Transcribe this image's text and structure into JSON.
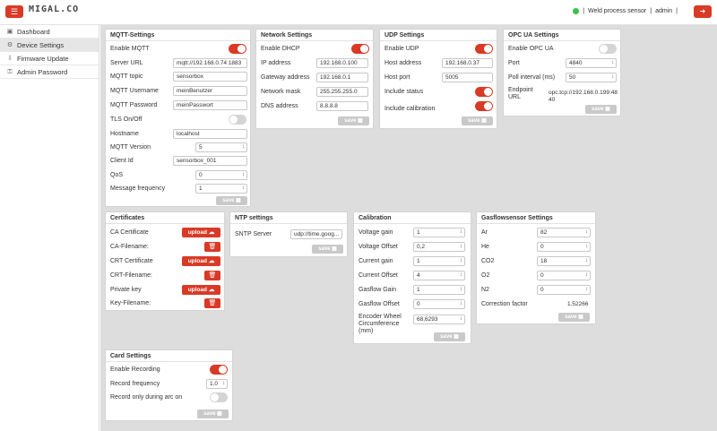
{
  "header": {
    "menu_icon": "hamburger-icon",
    "logo_text": "MIGAL.CO",
    "device_name": "Weld process sensor",
    "separator": "|",
    "user": "admin",
    "status_color": "#3cbf4a",
    "accent": "#d93a26"
  },
  "sidebar": {
    "items": [
      {
        "label": "Dashboard",
        "icon": "monitor-icon"
      },
      {
        "label": "Device Settings",
        "icon": "gear-icon"
      },
      {
        "label": "Firmware Update",
        "icon": "download-icon"
      },
      {
        "label": "Admin Password",
        "icon": "key-icon"
      }
    ]
  },
  "common": {
    "save": "save",
    "upload": "upload"
  },
  "mqtt": {
    "title": "MQTT-Settings",
    "enable_label": "Enable MQTT",
    "server_url_label": "Server URL",
    "server_url": "mqtt://192.168.0.74:1883",
    "topic_label": "MQTT topic",
    "topic": "sensorbox",
    "username_label": "MQTT Username",
    "username": "meinBenutzer",
    "password_label": "MQTT Password",
    "password": "meinPasswort",
    "tls_label": "TLS On/Off",
    "hostname_label": "Hostname",
    "hostname": "localhost",
    "version_label": "MQTT Version",
    "version": "5",
    "client_label": "Client Id",
    "client": "sensorbox_001",
    "qos_label": "QoS",
    "qos": "0",
    "freq_label": "Message frequency",
    "freq": "1"
  },
  "network": {
    "title": "Network Settings",
    "dhcp_label": "Enable DHCP",
    "ip_label": "IP address",
    "ip": "192.168.0.100",
    "gw_label": "Gateway address",
    "gw": "192.168.0.1",
    "mask_label": "Network mask",
    "mask": "255.255.255.0",
    "dns_label": "DNS address",
    "dns": "8.8.8.8"
  },
  "udp": {
    "title": "UDP Settings",
    "enable_label": "Enable UDP",
    "host_label": "Host address",
    "host": "192.168.0.37",
    "port_label": "Host port",
    "port": "5005",
    "status_label": "Include status",
    "calib_label": "Include calibration"
  },
  "opcua": {
    "title": "OPC UA Settings",
    "enable_label": "Enable OPC UA",
    "port_label": "Port",
    "port": "4840",
    "poll_label": "Poll interval (ms)",
    "poll": "50",
    "endpoint_label": "Endpoint URL",
    "endpoint": "opc.tcp://192.168.0.199:4840"
  },
  "certs": {
    "title": "Certificates",
    "ca_label": "CA Certificate",
    "ca_file_label": "CA-Filename:",
    "crt_label": "CRT Certificate",
    "crt_file_label": "CRT-Filename:",
    "key_label": "Private key",
    "key_file_label": "Key-Filename:"
  },
  "ntp": {
    "title": "NTP settings",
    "server_label": "SNTP Server",
    "server": "udp://time.goog..."
  },
  "calibration": {
    "title": "Calibration",
    "voltage_gain_label": "Voltage gain",
    "voltage_gain": "1",
    "voltage_offset_label": "Voltage Offset",
    "voltage_offset": "0,2",
    "current_gain_label": "Current gain",
    "current_gain": "1",
    "current_offset_label": "Current Offset",
    "current_offset": "4",
    "gasflow_gain_label": "Gasflow Gain",
    "gasflow_gain": "1",
    "gasflow_offset_label": "Gasflow Offset",
    "gasflow_offset": "0",
    "encoder_label": "Encoder Wheel Circumference (mm)",
    "encoder": "68,6293"
  },
  "gas": {
    "title": "Gasflowsensor Settings",
    "ar_label": "Ar",
    "ar": "82",
    "he_label": "He",
    "he": "0",
    "co2_label": "CO2",
    "co2": "18",
    "o2_label": "O2",
    "o2": "0",
    "n2_label": "N2",
    "n2": "0",
    "corr_label": "Correction factor",
    "corr": "1.52266"
  },
  "card": {
    "title": "Card Settings",
    "rec_label": "Enable Recording",
    "freq_label": "Record frequency",
    "freq": "1.0",
    "arc_label": "Record only during arc on"
  }
}
